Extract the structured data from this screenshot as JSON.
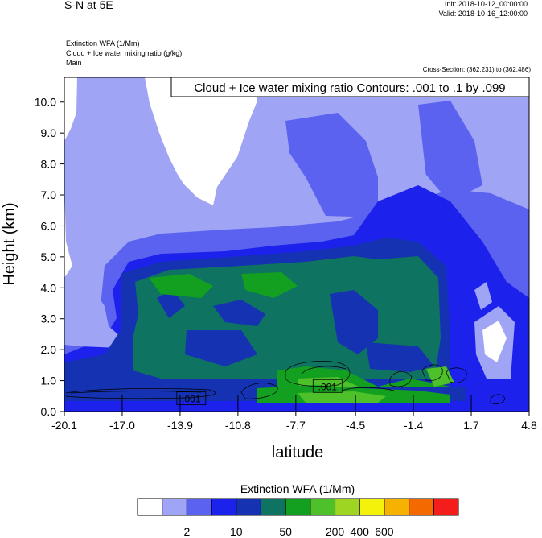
{
  "header": {
    "title": "S-N at 5E",
    "init": "Init: 2018-10-12_00:00:00",
    "valid": "Valid: 2018-10-16_12:00:00",
    "fields": [
      "Extinction WFA   (1/Mm)",
      "Cloud + Ice water mixing ratio   (g/kg)",
      "Main"
    ],
    "cross_section": "Cross-Section: (362,231) to (362,486)"
  },
  "chart_data": {
    "type": "heatmap",
    "title": "Cloud + Ice water mixing ratio Contours: .001 to .1 by .099",
    "xlabel": "latitude",
    "ylabel": "Height (km)",
    "xlim": [
      -20.1,
      4.8
    ],
    "ylim": [
      0.0,
      10.8
    ],
    "x_ticks": [
      -20.1,
      -17.0,
      -13.9,
      -10.8,
      -7.7,
      -4.5,
      -1.4,
      1.7,
      4.8
    ],
    "x_tick_labels": [
      "-20.1",
      "-17.0",
      "-13.9",
      "-10.8",
      "-7.7",
      "-4.5",
      "-1.4",
      "1.7",
      "4.8"
    ],
    "y_ticks": [
      0,
      1,
      2,
      3,
      4,
      5,
      6,
      7,
      8,
      9,
      10
    ],
    "y_tick_labels": [
      "0.0",
      "1.0",
      "2.0",
      "3.0",
      "4.0",
      "5.0",
      "6.0",
      "7.0",
      "8.0",
      "9.0",
      "10.0"
    ],
    "contour_labels": [
      {
        "text": ".001",
        "x": -13.3,
        "y": 0.4
      },
      {
        "text": ".001",
        "x": -6.0,
        "y": 0.8
      }
    ],
    "colorbar": {
      "title": "Extinction WFA  (1/Mm)",
      "colors": [
        "#ffffff",
        "#a0a4f5",
        "#5c62f0",
        "#1c22ec",
        "#1432b2",
        "#0e7360",
        "#13a020",
        "#4ec02a",
        "#9ed422",
        "#f4f20a",
        "#f5b200",
        "#f56a00",
        "#f51c1c"
      ],
      "tick_labels": [
        "2",
        "10",
        "50",
        "200",
        "400",
        "600"
      ],
      "tick_boundaries": [
        2,
        4,
        6,
        8,
        9,
        10
      ]
    }
  }
}
